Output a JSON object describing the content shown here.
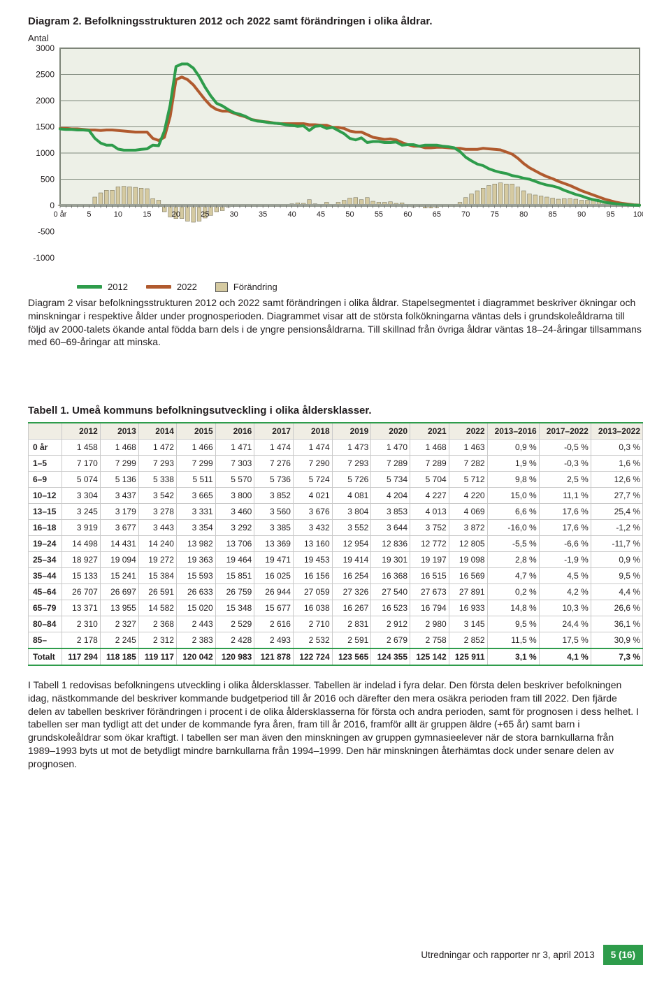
{
  "diagram": {
    "title": "Diagram 2. Befolkningsstrukturen 2012 och 2022 samt förändringen i olika åldrar.",
    "ylabel": "Antal",
    "xlabel_first": "0 år",
    "type": "combined line+bar",
    "ylim": [
      -1000,
      3000
    ],
    "ytick_step": 500,
    "yticks": [
      "3000",
      "2500",
      "2000",
      "1500",
      "1000",
      "500",
      "0",
      "-500",
      "-1000"
    ],
    "xlim": [
      0,
      100
    ],
    "xtick_step": 5,
    "xticks": [
      "0 år",
      "5",
      "10",
      "15",
      "20",
      "25",
      "30",
      "35",
      "40",
      "45",
      "50",
      "55",
      "60",
      "65",
      "70",
      "75",
      "80",
      "85",
      "90",
      "95",
      "100"
    ],
    "chart_bg": "#edf0e7",
    "chart_border": "#7e8579",
    "grid_color": "#808a7d",
    "zero_line_color": "#9aa096",
    "line_width": 4,
    "bar_fill": "#d5caa1",
    "bar_stroke": "#6b6650",
    "legend": [
      {
        "label": "2012",
        "type": "line",
        "color": "#2e9c4b"
      },
      {
        "label": "2022",
        "type": "line",
        "color": "#b05a2e"
      },
      {
        "label": "Förändring",
        "type": "box",
        "color": "#d5caa1"
      }
    ],
    "series_2012_color": "#2e9c4b",
    "series_2022_color": "#b05a2e",
    "series_2012": [
      1460,
      1450,
      1450,
      1440,
      1440,
      1430,
      1280,
      1190,
      1150,
      1150,
      1075,
      1055,
      1055,
      1055,
      1070,
      1080,
      1150,
      1140,
      1420,
      1920,
      2650,
      2700,
      2700,
      2620,
      2460,
      2260,
      2090,
      1950,
      1900,
      1830,
      1770,
      1740,
      1700,
      1640,
      1610,
      1600,
      1580,
      1570,
      1560,
      1540,
      1530,
      1510,
      1520,
      1430,
      1510,
      1520,
      1470,
      1490,
      1430,
      1370,
      1280,
      1250,
      1290,
      1200,
      1220,
      1220,
      1200,
      1200,
      1210,
      1150,
      1160,
      1160,
      1130,
      1150,
      1150,
      1150,
      1130,
      1120,
      1100,
      1030,
      920,
      850,
      790,
      760,
      700,
      660,
      630,
      610,
      570,
      550,
      520,
      500,
      460,
      420,
      390,
      370,
      340,
      290,
      250,
      210,
      180,
      140,
      110,
      90,
      60,
      45,
      30,
      20,
      12,
      7,
      3
    ],
    "series_2022": [
      1470,
      1470,
      1460,
      1460,
      1450,
      1440,
      1440,
      1430,
      1440,
      1440,
      1430,
      1420,
      1410,
      1400,
      1400,
      1400,
      1280,
      1240,
      1300,
      1700,
      2400,
      2450,
      2400,
      2300,
      2160,
      2020,
      1900,
      1830,
      1800,
      1800,
      1760,
      1720,
      1690,
      1640,
      1620,
      1600,
      1590,
      1570,
      1560,
      1560,
      1560,
      1560,
      1560,
      1540,
      1540,
      1530,
      1530,
      1490,
      1490,
      1470,
      1420,
      1400,
      1400,
      1350,
      1300,
      1280,
      1260,
      1270,
      1250,
      1200,
      1160,
      1130,
      1130,
      1100,
      1100,
      1110,
      1110,
      1100,
      1090,
      1090,
      1070,
      1070,
      1070,
      1090,
      1080,
      1070,
      1060,
      1020,
      980,
      900,
      800,
      720,
      660,
      600,
      550,
      510,
      460,
      420,
      380,
      330,
      280,
      240,
      200,
      160,
      120,
      90,
      60,
      40,
      25,
      12,
      5
    ],
    "series_forandring": [
      10,
      20,
      10,
      20,
      10,
      10,
      160,
      240,
      290,
      290,
      355,
      365,
      355,
      345,
      330,
      320,
      130,
      100,
      -120,
      -220,
      -250,
      -250,
      -300,
      -320,
      -300,
      -240,
      -190,
      -120,
      -100,
      -30,
      -10,
      -20,
      -10,
      0,
      10,
      0,
      10,
      0,
      0,
      20,
      30,
      50,
      40,
      110,
      30,
      10,
      60,
      0,
      60,
      100,
      140,
      150,
      110,
      150,
      80,
      60,
      60,
      70,
      40,
      50,
      0,
      -30,
      0,
      -50,
      -50,
      -40,
      -20,
      -20,
      -10,
      60,
      150,
      220,
      280,
      330,
      380,
      410,
      430,
      410,
      410,
      350,
      280,
      220,
      200,
      180,
      160,
      140,
      120,
      130,
      130,
      120,
      100,
      100,
      90,
      70,
      60,
      45,
      30,
      20,
      13,
      5,
      2
    ],
    "caption": "Diagram 2 visar befolkningsstrukturen 2012 och 2022 samt förändringen i olika åldrar. Stapelsegmentet i diagrammet beskriver ökningar och minskningar i respektive ålder under prognosperioden. Diagrammet visar att de största folkökningarna väntas dels i grundskoleåldrarna till följd av 2000-talets ökande antal födda barn dels i de yngre pensionsåldrarna. Till skillnad från övriga åldrar väntas 18–24-åringar tillsammans med 60–69-åringar att minska."
  },
  "table": {
    "title": "Tabell 1. Umeå kommuns befolkningsutveckling i olika åldersklasser.",
    "header_bg": "#f0ede4",
    "band1_bg": "#eeeadf",
    "band2_bg": "#f0e3d6",
    "band3_bg": "#e9f0e5",
    "green_border": "#2e9c4b",
    "col_groups": [
      {
        "cols": [
          "2012",
          "2013",
          "2014",
          "2015",
          "2016"
        ],
        "band": 1
      },
      {
        "cols": [
          "2017",
          "2018",
          "2019",
          "2020",
          "2021",
          "2022"
        ],
        "band": 2
      },
      {
        "cols": [
          "2013–2016",
          "2017–2022",
          "2013–2022"
        ],
        "band": 3
      }
    ],
    "rows": [
      {
        "label": "0 år",
        "v": [
          "1 458",
          "1 468",
          "1 472",
          "1 466",
          "1 471",
          "1 474",
          "1 474",
          "1 473",
          "1 470",
          "1 468",
          "1 463",
          "0,9 %",
          "-0,5 %",
          "0,3 %"
        ]
      },
      {
        "label": "1–5",
        "v": [
          "7 170",
          "7 299",
          "7 293",
          "7 299",
          "7 303",
          "7 276",
          "7 290",
          "7 293",
          "7 289",
          "7 289",
          "7 282",
          "1,9 %",
          "-0,3 %",
          "1,6 %"
        ]
      },
      {
        "label": "6–9",
        "v": [
          "5 074",
          "5 136",
          "5 338",
          "5 511",
          "5 570",
          "5 736",
          "5 724",
          "5 726",
          "5 734",
          "5 704",
          "5 712",
          "9,8 %",
          "2,5 %",
          "12,6 %"
        ]
      },
      {
        "label": "10–12",
        "v": [
          "3 304",
          "3 437",
          "3 542",
          "3 665",
          "3 800",
          "3 852",
          "4 021",
          "4 081",
          "4 204",
          "4 227",
          "4 220",
          "15,0 %",
          "11,1 %",
          "27,7 %"
        ]
      },
      {
        "label": "13–15",
        "v": [
          "3 245",
          "3 179",
          "3 278",
          "3 331",
          "3 460",
          "3 560",
          "3 676",
          "3 804",
          "3 853",
          "4 013",
          "4 069",
          "6,6 %",
          "17,6 %",
          "25,4 %"
        ]
      },
      {
        "label": "16–18",
        "v": [
          "3 919",
          "3 677",
          "3 443",
          "3 354",
          "3 292",
          "3 385",
          "3 432",
          "3 552",
          "3 644",
          "3 752",
          "3 872",
          "-16,0 %",
          "17,6 %",
          "-1,2 %"
        ]
      },
      {
        "label": "19–24",
        "v": [
          "14 498",
          "14 431",
          "14 240",
          "13 982",
          "13 706",
          "13 369",
          "13 160",
          "12 954",
          "12 836",
          "12 772",
          "12 805",
          "-5,5 %",
          "-6,6 %",
          "-11,7 %"
        ]
      },
      {
        "label": "25–34",
        "v": [
          "18 927",
          "19 094",
          "19 272",
          "19 363",
          "19 464",
          "19 471",
          "19 453",
          "19 414",
          "19 301",
          "19 197",
          "19 098",
          "2,8 %",
          "-1,9 %",
          "0,9 %"
        ]
      },
      {
        "label": "35–44",
        "v": [
          "15 133",
          "15 241",
          "15 384",
          "15 593",
          "15 851",
          "16 025",
          "16 156",
          "16 254",
          "16 368",
          "16 515",
          "16 569",
          "4,7 %",
          "4,5 %",
          "9,5 %"
        ]
      },
      {
        "label": "45–64",
        "v": [
          "26 707",
          "26 697",
          "26 591",
          "26 633",
          "26 759",
          "26 944",
          "27 059",
          "27 326",
          "27 540",
          "27 673",
          "27 891",
          "0,2 %",
          "4,2 %",
          "4,4 %"
        ]
      },
      {
        "label": "65–79",
        "v": [
          "13 371",
          "13 955",
          "14 582",
          "15 020",
          "15 348",
          "15 677",
          "16 038",
          "16 267",
          "16 523",
          "16 794",
          "16 933",
          "14,8 %",
          "10,3 %",
          "26,6 %"
        ]
      },
      {
        "label": "80–84",
        "v": [
          "2 310",
          "2 327",
          "2 368",
          "2 443",
          "2 529",
          "2 616",
          "2 710",
          "2 831",
          "2 912",
          "2 980",
          "3 145",
          "9,5 %",
          "24,4 %",
          "36,1 %"
        ]
      },
      {
        "label": "85–",
        "v": [
          "2 178",
          "2 245",
          "2 312",
          "2 383",
          "2 428",
          "2 493",
          "2 532",
          "2 591",
          "2 679",
          "2 758",
          "2 852",
          "11,5 %",
          "17,5 %",
          "30,9 %"
        ]
      }
    ],
    "total": {
      "label": "Totalt",
      "v": [
        "117 294",
        "118 185",
        "119 117",
        "120 042",
        "120 983",
        "121 878",
        "122 724",
        "123 565",
        "124 355",
        "125 142",
        "125 911",
        "3,1 %",
        "4,1 %",
        "7,3 %"
      ]
    },
    "caption": "I Tabell 1 redovisas befolkningens utveckling i olika åldersklasser. Tabellen är indelad i fyra delar. Den första delen beskriver befolkningen idag, nästkommande del beskriver kommande budgetperiod till år 2016 och därefter den mera osäkra perioden fram till 2022. Den fjärde delen av tabellen beskriver förändringen i procent i de olika åldersklasserna för första och andra perioden, samt för prognosen i dess helhet. I tabellen ser man tydligt att det under de kommande fyra åren, fram till år 2016, framför allt är gruppen äldre (+65 år) samt barn i grundskoleåldrar som ökar kraftigt. I tabellen ser man även den minskningen av gruppen gymnasieelever när de stora barnkullarna från 1989–1993 byts ut mot de betydligt mindre barnkullarna från 1994–1999. Den här minskningen återhämtas dock under senare delen av prognosen."
  },
  "footer": {
    "text": "Utredningar och rapporter nr 3, april 2013",
    "page": "5 (16)"
  }
}
